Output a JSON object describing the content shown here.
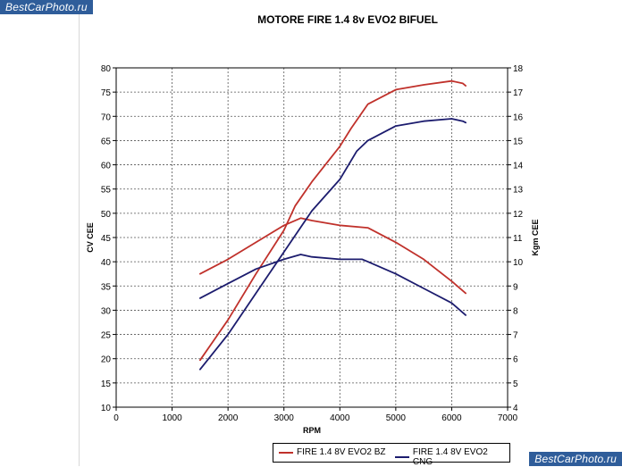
{
  "watermark": {
    "top": "BestCarPhoto.ru",
    "bottom": "BestCarPhoto.ru"
  },
  "chart_data": {
    "type": "line",
    "title": "MOTORE FIRE 1.4 8v EVO2 BIFUEL",
    "xlabel": "RPM",
    "ylabel_left": "CV CEE",
    "ylabel_right": "Kgm CEE",
    "xlim": [
      0,
      7000
    ],
    "xticks": [
      0,
      1000,
      2000,
      3000,
      4000,
      5000,
      6000,
      7000
    ],
    "ylim_left": [
      10,
      80
    ],
    "yticks_left": [
      10,
      15,
      20,
      25,
      30,
      35,
      40,
      45,
      50,
      55,
      60,
      65,
      70,
      75,
      80
    ],
    "ylim_right": [
      4,
      18
    ],
    "yticks_right": [
      4,
      5,
      6,
      7,
      8,
      9,
      10,
      11,
      12,
      13,
      14,
      15,
      16,
      17,
      18
    ],
    "grid": true,
    "legend_position": "bottom",
    "series": [
      {
        "name": "FIRE 1.4 8V EVO2 BZ",
        "color": "#c0312b",
        "curves": [
          {
            "axis": "left",
            "x": [
              1500,
              2000,
              2500,
              3000,
              3200,
              3500,
              4000,
              4200,
              4500,
              5000,
              5500,
              6000,
              6200,
              6250
            ],
            "y": [
              19.7,
              28.0,
              37.5,
              46.5,
              51.5,
              56.5,
              63.8,
              67.5,
              72.5,
              75.5,
              76.5,
              77.3,
              76.8,
              76.3
            ]
          },
          {
            "axis": "right",
            "x": [
              1500,
              2000,
              2500,
              3000,
              3300,
              3500,
              4000,
              4500,
              5000,
              5500,
              6000,
              6250
            ],
            "y": [
              9.5,
              10.1,
              10.8,
              11.5,
              11.8,
              11.7,
              11.5,
              11.4,
              10.8,
              10.1,
              9.2,
              8.7
            ]
          }
        ]
      },
      {
        "name": "FIRE 1.4 8V EVO2 CNG",
        "color": "#1c1c6e",
        "curves": [
          {
            "axis": "left",
            "x": [
              1500,
              2000,
              2500,
              3000,
              3500,
              4000,
              4300,
              4500,
              5000,
              5500,
              6000,
              6200,
              6250
            ],
            "y": [
              17.8,
              25.0,
              33.5,
              42.0,
              50.5,
              57.0,
              62.8,
              65.0,
              68.0,
              69.0,
              69.5,
              69.0,
              68.7
            ]
          },
          {
            "axis": "right",
            "x": [
              1500,
              2000,
              2500,
              3000,
              3300,
              3500,
              4000,
              4400,
              4500,
              5000,
              5500,
              6000,
              6250
            ],
            "y": [
              8.5,
              9.1,
              9.7,
              10.1,
              10.3,
              10.2,
              10.1,
              10.1,
              10.0,
              9.5,
              8.9,
              8.3,
              7.8
            ]
          }
        ]
      }
    ]
  }
}
